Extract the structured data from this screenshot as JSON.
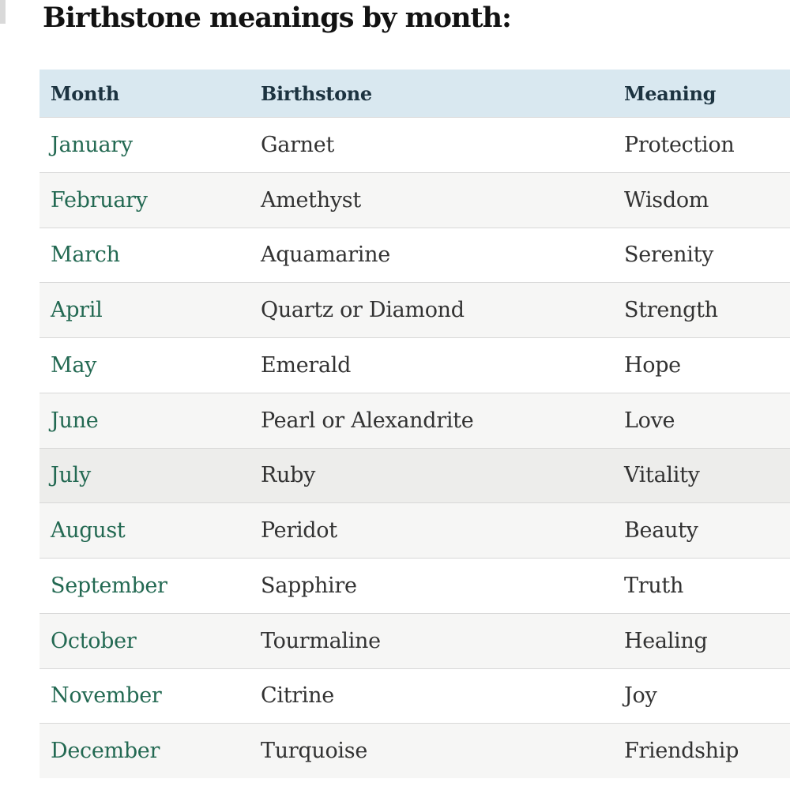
{
  "page": {
    "title": "Birthstone meanings by month:"
  },
  "table": {
    "columns": [
      "Month",
      "Birthstone",
      "Meaning"
    ],
    "rows": [
      {
        "month": "January",
        "birthstone": "Garnet",
        "meaning": "Protection",
        "shaded": false,
        "highlighted": false
      },
      {
        "month": "February",
        "birthstone": "Amethyst",
        "meaning": "Wisdom",
        "shaded": true,
        "highlighted": false
      },
      {
        "month": "March",
        "birthstone": "Aquamarine",
        "meaning": "Serenity",
        "shaded": false,
        "highlighted": false
      },
      {
        "month": "April",
        "birthstone": "Quartz or Diamond",
        "meaning": "Strength",
        "shaded": true,
        "highlighted": false
      },
      {
        "month": "May",
        "birthstone": "Emerald",
        "meaning": "Hope",
        "shaded": false,
        "highlighted": false
      },
      {
        "month": "June",
        "birthstone": "Pearl or Alexandrite",
        "meaning": "Love",
        "shaded": true,
        "highlighted": false
      },
      {
        "month": "July",
        "birthstone": "Ruby",
        "meaning": "Vitality",
        "shaded": false,
        "highlighted": true
      },
      {
        "month": "August",
        "birthstone": "Peridot",
        "meaning": "Beauty",
        "shaded": true,
        "highlighted": false
      },
      {
        "month": "September",
        "birthstone": "Sapphire",
        "meaning": "Truth",
        "shaded": false,
        "highlighted": false
      },
      {
        "month": "October",
        "birthstone": "Tourmaline",
        "meaning": "Healing",
        "shaded": true,
        "highlighted": false
      },
      {
        "month": "November",
        "birthstone": "Citrine",
        "meaning": "Joy",
        "shaded": false,
        "highlighted": false
      },
      {
        "month": "December",
        "birthstone": "Turquoise",
        "meaning": "Friendship",
        "shaded": true,
        "highlighted": false
      }
    ],
    "highlighted_row": "July"
  },
  "colors": {
    "header_background": "#d9e8f0",
    "header_text": "#1c3340",
    "month_link_green": "#236952",
    "body_text": "#323232",
    "stripe_background": "#f6f6f5",
    "highlight_background": "#ededeb",
    "divider": "#d8d8d8",
    "title_text": "#121212"
  }
}
